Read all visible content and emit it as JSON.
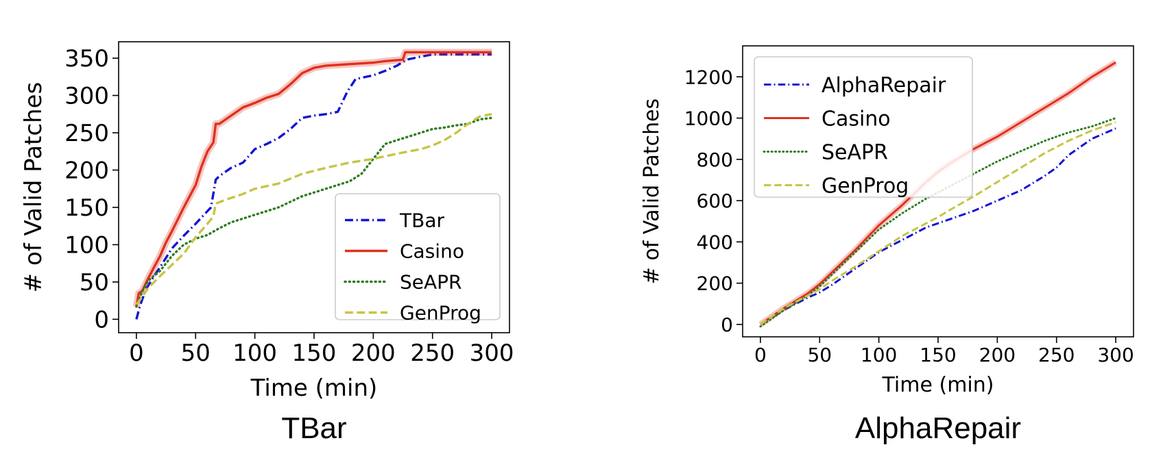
{
  "chart_data": [
    {
      "type": "line",
      "caption": "TBar",
      "xlabel": "Time (min)",
      "ylabel": "# of Valid Patches",
      "xlim": [
        -15,
        315
      ],
      "ylim": [
        -18,
        372
      ],
      "xticks": [
        0,
        50,
        100,
        150,
        200,
        250,
        300
      ],
      "yticks": [
        0,
        50,
        100,
        150,
        200,
        250,
        300,
        350
      ],
      "grid": false,
      "legend_position": "lower-right",
      "series": [
        {
          "name": "TBar",
          "color": "#1414d4",
          "dash": "dashdot",
          "points": [
            [
              0,
              0
            ],
            [
              3,
              18
            ],
            [
              8,
              40
            ],
            [
              15,
              58
            ],
            [
              20,
              70
            ],
            [
              30,
              95
            ],
            [
              40,
              112
            ],
            [
              50,
              128
            ],
            [
              60,
              145
            ],
            [
              63,
              150
            ],
            [
              67,
              187
            ],
            [
              70,
              192
            ],
            [
              80,
              203
            ],
            [
              90,
              210
            ],
            [
              100,
              228
            ],
            [
              110,
              235
            ],
            [
              120,
              243
            ],
            [
              130,
              255
            ],
            [
              140,
              270
            ],
            [
              150,
              273
            ],
            [
              160,
              275
            ],
            [
              170,
              278
            ],
            [
              178,
              305
            ],
            [
              185,
              322
            ],
            [
              200,
              327
            ],
            [
              210,
              333
            ],
            [
              220,
              340
            ],
            [
              228,
              348
            ],
            [
              240,
              352
            ],
            [
              250,
              355
            ],
            [
              300,
              355
            ]
          ]
        },
        {
          "name": "Casino",
          "color": "#e0301e",
          "dash": "solid",
          "points": [
            [
              0,
              17
            ],
            [
              2,
              35
            ],
            [
              5,
              38
            ],
            [
              10,
              55
            ],
            [
              15,
              70
            ],
            [
              20,
              85
            ],
            [
              25,
              103
            ],
            [
              30,
              118
            ],
            [
              40,
              150
            ],
            [
              50,
              180
            ],
            [
              55,
              205
            ],
            [
              60,
              225
            ],
            [
              65,
              237
            ],
            [
              67,
              262
            ],
            [
              70,
              262
            ],
            [
              80,
              273
            ],
            [
              90,
              284
            ],
            [
              100,
              290
            ],
            [
              110,
              297
            ],
            [
              120,
              302
            ],
            [
              130,
              315
            ],
            [
              140,
              330
            ],
            [
              150,
              337
            ],
            [
              160,
              340
            ],
            [
              180,
              342
            ],
            [
              200,
              344
            ],
            [
              210,
              346
            ],
            [
              225,
              348
            ],
            [
              227,
              358
            ],
            [
              240,
              358
            ],
            [
              300,
              358
            ]
          ]
        },
        {
          "name": "SeAPR",
          "color": "#2e7d20",
          "dash": "dotted",
          "points": [
            [
              0,
              17
            ],
            [
              5,
              38
            ],
            [
              10,
              52
            ],
            [
              20,
              65
            ],
            [
              30,
              85
            ],
            [
              40,
              100
            ],
            [
              50,
              108
            ],
            [
              60,
              113
            ],
            [
              70,
              122
            ],
            [
              80,
              130
            ],
            [
              100,
              140
            ],
            [
              120,
              150
            ],
            [
              140,
              165
            ],
            [
              160,
              175
            ],
            [
              180,
              185
            ],
            [
              190,
              195
            ],
            [
              200,
              215
            ],
            [
              210,
              235
            ],
            [
              220,
              240
            ],
            [
              230,
              245
            ],
            [
              240,
              250
            ],
            [
              250,
              255
            ],
            [
              260,
              257
            ],
            [
              270,
              260
            ],
            [
              280,
              262
            ],
            [
              290,
              268
            ],
            [
              300,
              270
            ]
          ]
        },
        {
          "name": "GenProg",
          "color": "#c5c545",
          "dash": "dashed",
          "points": [
            [
              0,
              20
            ],
            [
              5,
              30
            ],
            [
              10,
              42
            ],
            [
              20,
              58
            ],
            [
              30,
              73
            ],
            [
              40,
              88
            ],
            [
              50,
              110
            ],
            [
              60,
              128
            ],
            [
              65,
              138
            ],
            [
              67,
              155
            ],
            [
              75,
              160
            ],
            [
              90,
              168
            ],
            [
              100,
              175
            ],
            [
              120,
              182
            ],
            [
              140,
              195
            ],
            [
              160,
              203
            ],
            [
              180,
              210
            ],
            [
              200,
              215
            ],
            [
              220,
              222
            ],
            [
              240,
              228
            ],
            [
              250,
              233
            ],
            [
              260,
              240
            ],
            [
              270,
              250
            ],
            [
              280,
              262
            ],
            [
              290,
              272
            ],
            [
              300,
              275
            ]
          ]
        }
      ]
    },
    {
      "type": "line",
      "caption": "AlphaRepair",
      "xlabel": "Time (min)",
      "ylabel": "# of Valid Patches",
      "xlim": [
        -15,
        315
      ],
      "ylim": [
        -60,
        1350
      ],
      "xticks": [
        0,
        50,
        100,
        150,
        200,
        250,
        300
      ],
      "yticks": [
        0,
        200,
        400,
        600,
        800,
        1000,
        1200
      ],
      "grid": false,
      "legend_position": "upper-left",
      "series": [
        {
          "name": "AlphaRepair",
          "color": "#1414d4",
          "dash": "dashdot",
          "points": [
            [
              0,
              0
            ],
            [
              20,
              70
            ],
            [
              40,
              130
            ],
            [
              50,
              155
            ],
            [
              60,
              190
            ],
            [
              80,
              270
            ],
            [
              100,
              350
            ],
            [
              120,
              410
            ],
            [
              140,
              470
            ],
            [
              150,
              490
            ],
            [
              160,
              510
            ],
            [
              180,
              550
            ],
            [
              200,
              600
            ],
            [
              220,
              650
            ],
            [
              240,
              720
            ],
            [
              250,
              760
            ],
            [
              260,
              820
            ],
            [
              280,
              900
            ],
            [
              300,
              950
            ]
          ]
        },
        {
          "name": "Casino",
          "color": "#e0301e",
          "dash": "solid",
          "points": [
            [
              0,
              0
            ],
            [
              20,
              80
            ],
            [
              40,
              150
            ],
            [
              50,
              195
            ],
            [
              60,
              250
            ],
            [
              80,
              360
            ],
            [
              100,
              480
            ],
            [
              120,
              580
            ],
            [
              140,
              690
            ],
            [
              150,
              740
            ],
            [
              160,
              780
            ],
            [
              180,
              850
            ],
            [
              200,
              910
            ],
            [
              220,
              980
            ],
            [
              240,
              1050
            ],
            [
              250,
              1085
            ],
            [
              260,
              1120
            ],
            [
              280,
              1200
            ],
            [
              300,
              1270
            ]
          ]
        },
        {
          "name": "SeAPR",
          "color": "#2e7d20",
          "dash": "dotted",
          "points": [
            [
              0,
              -10
            ],
            [
              20,
              70
            ],
            [
              40,
              140
            ],
            [
              50,
              185
            ],
            [
              60,
              240
            ],
            [
              80,
              350
            ],
            [
              100,
              460
            ],
            [
              120,
              540
            ],
            [
              140,
              610
            ],
            [
              150,
              640
            ],
            [
              160,
              670
            ],
            [
              180,
              730
            ],
            [
              200,
              790
            ],
            [
              220,
              840
            ],
            [
              240,
              890
            ],
            [
              250,
              910
            ],
            [
              260,
              930
            ],
            [
              280,
              960
            ],
            [
              300,
              1000
            ]
          ]
        },
        {
          "name": "GenProg",
          "color": "#c5c545",
          "dash": "dashed",
          "points": [
            [
              0,
              0
            ],
            [
              20,
              80
            ],
            [
              40,
              140
            ],
            [
              50,
              170
            ],
            [
              60,
              210
            ],
            [
              80,
              280
            ],
            [
              100,
              355
            ],
            [
              120,
              430
            ],
            [
              140,
              490
            ],
            [
              150,
              520
            ],
            [
              160,
              555
            ],
            [
              180,
              620
            ],
            [
              200,
              690
            ],
            [
              220,
              760
            ],
            [
              240,
              830
            ],
            [
              250,
              860
            ],
            [
              260,
              890
            ],
            [
              280,
              940
            ],
            [
              300,
              980
            ]
          ]
        }
      ]
    }
  ]
}
